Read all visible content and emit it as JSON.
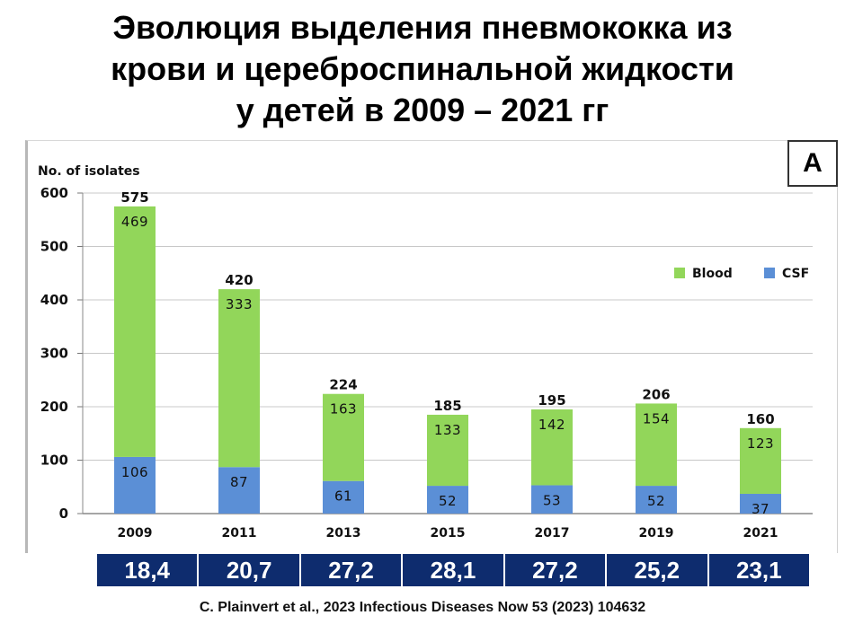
{
  "title_lines": [
    "Эволюция выделения пневмококка из",
    "крови и цереброспинальной жидкости",
    "у детей в 2009 – 2021 гг"
  ],
  "panel_label": "A",
  "chart_data": {
    "type": "bar",
    "stacked": true,
    "ylabel": "No. of isolates",
    "ylim": [
      0,
      600
    ],
    "yticks": [
      0,
      100,
      200,
      300,
      400,
      500,
      600
    ],
    "categories": [
      "2009",
      "2011",
      "2013",
      "2015",
      "2017",
      "2019",
      "2021"
    ],
    "series": [
      {
        "name": "CSF",
        "color": "#5b8fd6",
        "values": [
          106,
          87,
          61,
          52,
          53,
          52,
          37
        ]
      },
      {
        "name": "Blood",
        "color": "#92d65a",
        "values": [
          469,
          333,
          163,
          133,
          142,
          154,
          123
        ]
      }
    ],
    "totals": [
      575,
      420,
      224,
      185,
      195,
      206,
      160
    ],
    "grid": true,
    "legend_placement": "top-right"
  },
  "percent_row": [
    "18,4",
    "20,7",
    "27,2",
    "28,1",
    "27,2",
    "25,2",
    "23,1"
  ],
  "citation": "C. Plainvert  et al., 2023 Infectious Diseases Now 53 (2023) 104632"
}
